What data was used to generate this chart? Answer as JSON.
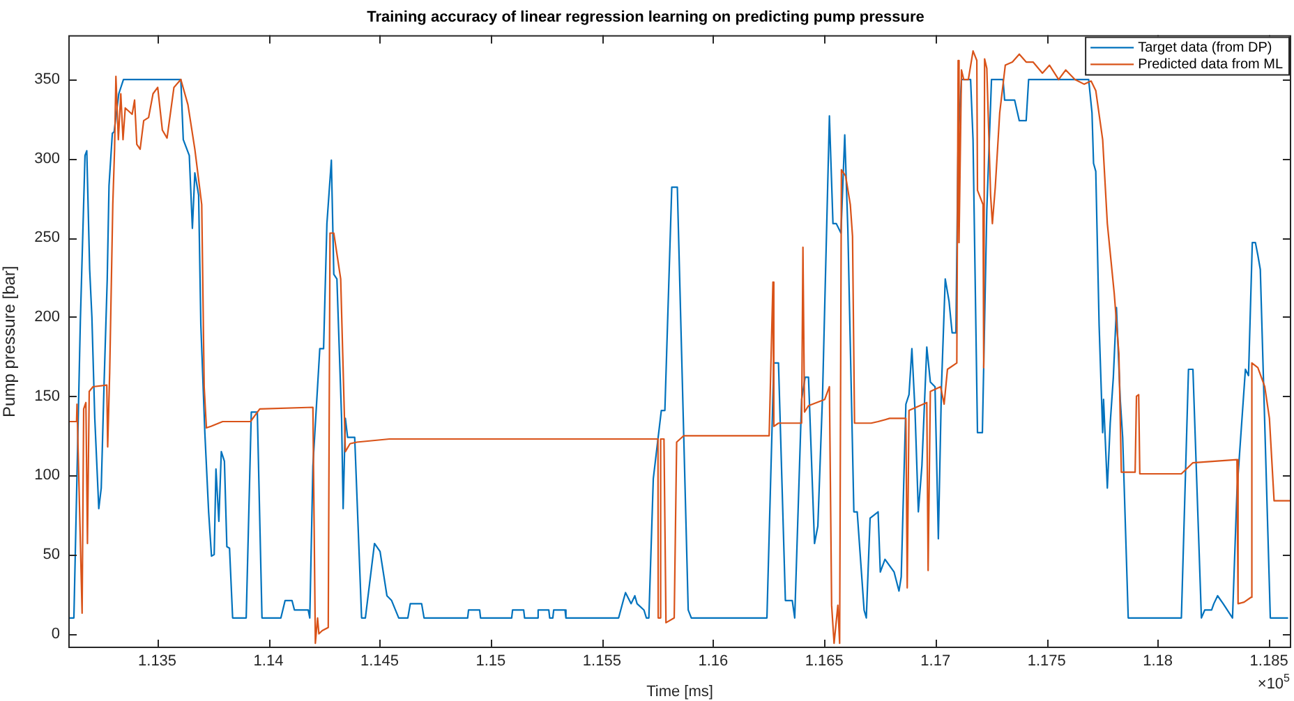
{
  "chart_data": {
    "type": "line",
    "title": "Training accuracy of linear regression learning on predicting pump pressure",
    "xlabel": "Time [ms]",
    "ylabel": "Pump pressure [bar]",
    "annotations": [
      "×10$^{5}$"
    ],
    "xlim": [
      1.131,
      1.186
    ],
    "xticks": [
      1.135,
      1.14,
      1.145,
      1.15,
      1.155,
      1.16,
      1.165,
      1.17,
      1.175,
      1.18,
      1.185
    ],
    "ylim": [
      -9,
      378
    ],
    "yticks": [
      0,
      50,
      100,
      150,
      200,
      250,
      300,
      350
    ],
    "legend": "top right",
    "line_style": "solid",
    "series": [
      {
        "name": "Target data (from DP)",
        "color": "#0072bd",
        "x": [
          1.13102,
          1.13125,
          1.13154,
          1.13175,
          1.13183,
          1.13196,
          1.13206,
          1.13219,
          1.13237,
          1.13248,
          1.13261,
          1.13275,
          1.13283,
          1.13298,
          1.13306,
          1.13327,
          1.13348,
          1.13606,
          1.13617,
          1.13644,
          1.13658,
          1.13669,
          1.13686,
          1.13696,
          1.13714,
          1.13731,
          1.13744,
          1.13756,
          1.13764,
          1.13777,
          1.13788,
          1.13802,
          1.13813,
          1.13825,
          1.13839,
          1.139,
          1.13923,
          1.1395,
          1.13971,
          1.14056,
          1.14075,
          1.14106,
          1.14117,
          1.14179,
          1.14186,
          1.142,
          1.14231,
          1.14248,
          1.14263,
          1.14283,
          1.14294,
          1.14308,
          1.14329,
          1.14336,
          1.14346,
          1.14356,
          1.14388,
          1.14419,
          1.14436,
          1.14477,
          1.14502,
          1.14533,
          1.14554,
          1.14586,
          1.14627,
          1.14638,
          1.14689,
          1.147,
          1.14896,
          1.149,
          1.1495,
          1.14954,
          1.15094,
          1.15098,
          1.15148,
          1.15152,
          1.15209,
          1.15213,
          1.15261,
          1.15265,
          1.15279,
          1.15283,
          1.15334,
          1.15338,
          1.15575,
          1.15596,
          1.15606,
          1.15631,
          1.15648,
          1.15658,
          1.15689,
          1.157,
          1.15711,
          1.15731,
          1.15767,
          1.15783,
          1.15814,
          1.15839,
          1.15888,
          1.15902,
          1.16242,
          1.16273,
          1.16294,
          1.16325,
          1.16356,
          1.16367,
          1.16398,
          1.16414,
          1.16429,
          1.16456,
          1.16471,
          1.16492,
          1.16523,
          1.16539,
          1.16554,
          1.16575,
          1.16592,
          1.16606,
          1.16633,
          1.16648,
          1.16679,
          1.16689,
          1.16706,
          1.16742,
          1.16752,
          1.16773,
          1.16814,
          1.16836,
          1.16846,
          1.16867,
          1.16881,
          1.16894,
          1.16908,
          1.16923,
          1.16939,
          1.16961,
          1.16977,
          1.16998,
          1.17013,
          1.17027,
          1.17044,
          1.17061,
          1.17075,
          1.17092,
          1.17102,
          1.17117,
          1.17158,
          1.17169,
          1.17189,
          1.17211,
          1.17231,
          1.17252,
          1.17304,
          1.17311,
          1.17356,
          1.17377,
          1.17408,
          1.17419,
          1.17689,
          1.17704,
          1.17711,
          1.17721,
          1.17736,
          1.17752,
          1.17756,
          1.17773,
          1.17786,
          1.178,
          1.17814,
          1.17831,
          1.17842,
          1.17867,
          1.18106,
          1.18138,
          1.18158,
          1.18196,
          1.18211,
          1.18242,
          1.18252,
          1.18269,
          1.18294,
          1.18336,
          1.18356,
          1.18394,
          1.18408,
          1.18425,
          1.18439,
          1.1845,
          1.18461,
          1.18506,
          1.18586
        ],
        "values": [
          10,
          10,
          197,
          302,
          305,
          230,
          200,
          136,
          79,
          92,
          159,
          224,
          283,
          316,
          317,
          341,
          350,
          350,
          312,
          302,
          256,
          291,
          277,
          195,
          127,
          77,
          49,
          50,
          104,
          71,
          115,
          109,
          55,
          54,
          10,
          10,
          140,
          140,
          10,
          10,
          21,
          21,
          15,
          15,
          10,
          106,
          180,
          180,
          259,
          299,
          227,
          224,
          136,
          79,
          136,
          124,
          124,
          10,
          10,
          57,
          52,
          24,
          21,
          10,
          10,
          19,
          19,
          10,
          10,
          15,
          15,
          10,
          10,
          15,
          15,
          10,
          10,
          15,
          15,
          10,
          10,
          15,
          15,
          10,
          10,
          21,
          26,
          19,
          24,
          19,
          15,
          10,
          10,
          98,
          141,
          141,
          282,
          282,
          15,
          10,
          10,
          171,
          171,
          21,
          21,
          10,
          148,
          162,
          162,
          57,
          68,
          150,
          327,
          259,
          259,
          253,
          315,
          255,
          77,
          77,
          15,
          10,
          73,
          77,
          39,
          47,
          39,
          27,
          36,
          145,
          151,
          180,
          141,
          77,
          106,
          181,
          159,
          156,
          60,
          156,
          224,
          210,
          190,
          190,
          312,
          350,
          350,
          312,
          127,
          127,
          268,
          350,
          350,
          337,
          337,
          324,
          324,
          350,
          350,
          329,
          297,
          292,
          195,
          127,
          148,
          92,
          133,
          162,
          206,
          148,
          124,
          10,
          10,
          167,
          167,
          10,
          15,
          15,
          19,
          24,
          19,
          10,
          90,
          167,
          163,
          247,
          247,
          239,
          230,
          10,
          10
        ]
      },
      {
        "name": "Predicted data from ML",
        "color": "#d95319",
        "x": [
          1.13102,
          1.13137,
          1.13139,
          1.13162,
          1.13169,
          1.13179,
          1.13186,
          1.13194,
          1.13211,
          1.13273,
          1.13277,
          1.13286,
          1.133,
          1.13308,
          1.13314,
          1.13325,
          1.13336,
          1.13346,
          1.13356,
          1.13387,
          1.13398,
          1.13408,
          1.13423,
          1.13439,
          1.13461,
          1.13481,
          1.13502,
          1.13523,
          1.13544,
          1.13575,
          1.13606,
          1.13638,
          1.13669,
          1.137,
          1.13711,
          1.13721,
          1.13742,
          1.13794,
          1.13919,
          1.13961,
          1.142,
          1.14211,
          1.14221,
          1.14227,
          1.14242,
          1.14269,
          1.14277,
          1.14294,
          1.14325,
          1.14346,
          1.14367,
          1.14398,
          1.14544,
          1.15752,
          1.15753,
          1.15763,
          1.15764,
          1.15779,
          1.15788,
          1.15825,
          1.15836,
          1.15867,
          1.16252,
          1.16269,
          1.16273,
          1.16294,
          1.16398,
          1.16404,
          1.16411,
          1.16429,
          1.16502,
          1.16523,
          1.16533,
          1.16544,
          1.16561,
          1.16569,
          1.16577,
          1.16596,
          1.16617,
          1.16627,
          1.16636,
          1.16711,
          1.16742,
          1.16794,
          1.16867,
          1.16873,
          1.16881,
          1.16961,
          1.16967,
          1.16977,
          1.17023,
          1.17039,
          1.17054,
          1.17096,
          1.17102,
          1.17106,
          1.17117,
          1.17127,
          1.17148,
          1.17169,
          1.17186,
          1.17189,
          1.17214,
          1.17217,
          1.17221,
          1.17231,
          1.17248,
          1.17256,
          1.17269,
          1.17289,
          1.17314,
          1.17346,
          1.17377,
          1.17408,
          1.17439,
          1.17481,
          1.17513,
          1.17554,
          1.17586,
          1.17627,
          1.17669,
          1.177,
          1.17721,
          1.17752,
          1.17773,
          1.17804,
          1.17825,
          1.17836,
          1.17898,
          1.17904,
          1.17914,
          1.17919,
          1.18106,
          1.18158,
          1.18356,
          1.18361,
          1.18388,
          1.18419,
          1.18423,
          1.1845,
          1.18481,
          1.18502,
          1.18523,
          1.18594
        ],
        "values": [
          134,
          134,
          145,
          13,
          142,
          146,
          57,
          153,
          156,
          157,
          118,
          165,
          271,
          306,
          352,
          312,
          341,
          312,
          332,
          328,
          337,
          309,
          306,
          324,
          326,
          341,
          345,
          318,
          313,
          345,
          350,
          334,
          306,
          271,
          156,
          130,
          131,
          134,
          134,
          142,
          143,
          -6,
          10,
          0,
          2,
          4,
          253,
          253,
          224,
          115,
          120,
          121,
          123,
          123,
          10,
          10,
          123,
          123,
          7,
          10,
          121,
          125,
          125,
          222,
          131,
          133,
          133,
          244,
          140,
          144,
          148,
          156,
          18,
          -6,
          18,
          -6,
          293,
          289,
          271,
          251,
          133,
          133,
          134,
          136,
          136,
          29,
          141,
          146,
          40,
          153,
          156,
          145,
          167,
          171,
          362,
          247,
          356,
          350,
          350,
          368,
          362,
          280,
          271,
          168,
          363,
          357,
          277,
          259,
          282,
          329,
          359,
          361,
          366,
          361,
          361,
          354,
          359,
          350,
          356,
          350,
          347,
          349,
          343,
          312,
          259,
          215,
          177,
          102,
          102,
          150,
          151,
          101,
          101,
          108,
          110,
          19,
          20,
          23,
          171,
          168,
          156,
          136,
          84,
          84
        ]
      }
    ]
  }
}
